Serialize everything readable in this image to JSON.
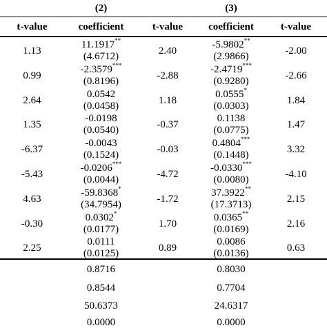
{
  "header": {
    "model2": "(2)",
    "model3": "(3)",
    "columns": [
      "t-value",
      "coefficient",
      "t-value",
      "coefficient",
      "t-value"
    ]
  },
  "rows": [
    {
      "t1": "1.13",
      "coef2": "11.1917",
      "star2": "**",
      "se2": "(4.6712)",
      "t2": "2.40",
      "coef3": "-5.9802",
      "star3": "**",
      "se3": "(2.9866)",
      "t3": "-2.00"
    },
    {
      "t1": "0.99",
      "coef2": "-2.3579",
      "star2": "***",
      "se2": "(0.8196)",
      "t2": "-2.88",
      "coef3": "-2.4719",
      "star3": "***",
      "se3": "(0.9280)",
      "t3": "-2.66"
    },
    {
      "t1": "2.64",
      "coef2": "0.0542",
      "star2": "",
      "se2": "(0.0458)",
      "t2": "1.18",
      "coef3": "0.0555",
      "star3": "*",
      "se3": "(0.0303)",
      "t3": "1.84"
    },
    {
      "t1": "1.35",
      "coef2": "-0.0198",
      "star2": "",
      "se2": "(0.0540)",
      "t2": "-0.37",
      "coef3": "0.1138",
      "star3": "",
      "se3": "(0.0775)",
      "t3": "1.47"
    },
    {
      "t1": "-6.37",
      "coef2": "-0.0043",
      "star2": "",
      "se2": "(0.1524)",
      "t2": "-0.03",
      "coef3": "0.4804",
      "star3": "***",
      "se3": "(0.1448)",
      "t3": "3.32"
    },
    {
      "t1": "-5.43",
      "coef2": "-0.0206",
      "star2": "***",
      "se2": "(0.0044)",
      "t2": "-4.72",
      "coef3": "-0.0330",
      "star3": "***",
      "se3": "(0.0080)",
      "t3": "-4.10"
    },
    {
      "t1": "4.63",
      "coef2": "-59.8368",
      "star2": "*",
      "se2": "(34.7954)",
      "t2": "-1.72",
      "coef3": "37.3922",
      "star3": "**",
      "se3": "(17.3713)",
      "t3": "2.15"
    },
    {
      "t1": "-0.30",
      "coef2": "0.0302",
      "star2": "*",
      "se2": "(0.0177)",
      "t2": "1.70",
      "coef3": "0.0365",
      "star3": "**",
      "se3": "(0.0169)",
      "t3": "2.16"
    },
    {
      "t1": "2.25",
      "coef2": "0.0111",
      "star2": "",
      "se2": "(0.0125)",
      "t2": "0.89",
      "coef3": "0.0086",
      "star3": "",
      "se3": "(0.0136)",
      "t3": "0.63"
    }
  ],
  "stats": [
    {
      "m2": "0.8716",
      "m3": "0.8030"
    },
    {
      "m2": "0.8544",
      "m3": "0.7704"
    },
    {
      "m2": "50.6373",
      "m3": "24.6317"
    },
    {
      "m2": "0.0000",
      "m3": "0.0000"
    }
  ]
}
